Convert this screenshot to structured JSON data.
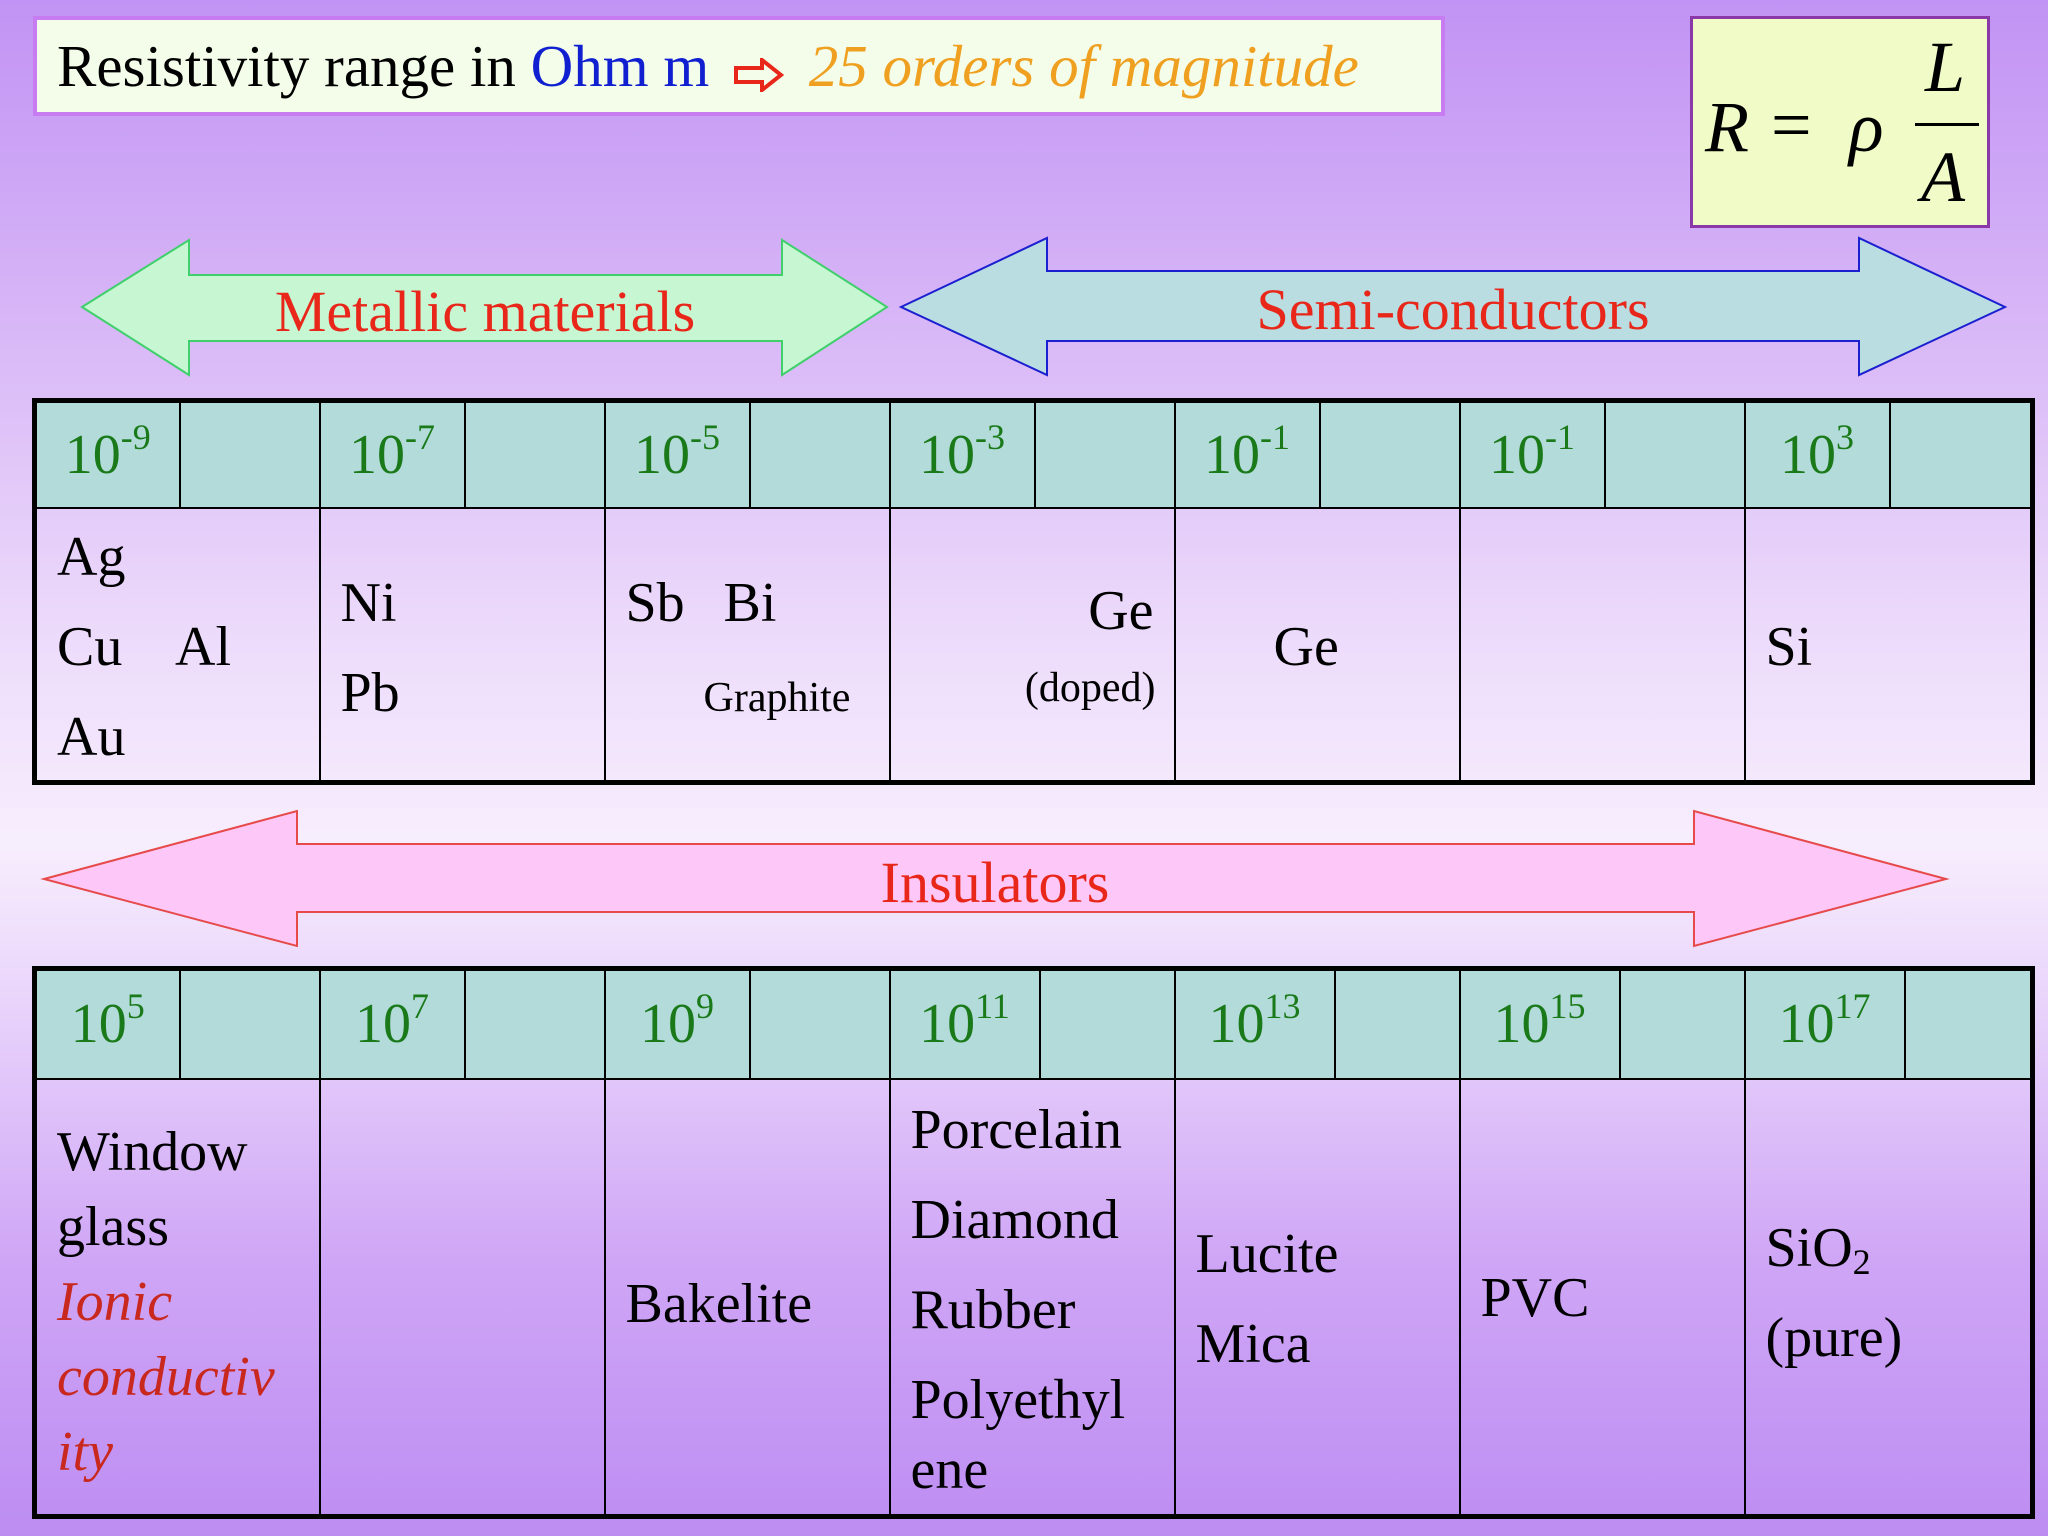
{
  "title": {
    "prefix": "Resistivity range in",
    "unit": "Ohm m",
    "arrow_icon": "hollow-right-arrow-icon",
    "orders": "25 orders of magnitude"
  },
  "formula": {
    "lhs": "R",
    "eq": "=",
    "rho": "ρ",
    "numerator": "L",
    "denominator": "A"
  },
  "bands": {
    "metallic": "Metallic materials",
    "semiconductors": "Semi-conductors",
    "insulators": "Insulators"
  },
  "colors": {
    "metallic_fill": "#c6f7d2",
    "metallic_stroke": "#3fcf6b",
    "semi_fill": "#b9dde1",
    "semi_stroke": "#1a1fd0",
    "insulators_fill": "#fdc7f7",
    "insulators_stroke": "#e64a4a",
    "label_red": "#e8271a",
    "exponent_green": "#1a7a1a",
    "header_teal": "#b3dbda"
  },
  "table1": {
    "headers": [
      {
        "base": "10",
        "exp": "-9"
      },
      {
        "base": "10",
        "exp": "-7"
      },
      {
        "base": "10",
        "exp": "-5"
      },
      {
        "base": "10",
        "exp": "-3"
      },
      {
        "base": "10",
        "exp": "-1"
      },
      {
        "base": "10",
        "exp": "-1"
      },
      {
        "base": "10",
        "exp": "3"
      }
    ],
    "cells": {
      "c1": [
        "Ag",
        "Cu",
        "Al",
        "Au"
      ],
      "c2": [
        "Ni",
        "Pb"
      ],
      "c3": [
        "Sb",
        "Bi",
        "Graphite"
      ],
      "c4": [
        "Ge",
        "(doped)"
      ],
      "c5": [
        "Ge"
      ],
      "c6": [],
      "c7": [
        "Si"
      ]
    }
  },
  "table2": {
    "headers": [
      {
        "base": "10",
        "exp": "5"
      },
      {
        "base": "10",
        "exp": "7"
      },
      {
        "base": "10",
        "exp": "9"
      },
      {
        "base": "10",
        "exp": "11"
      },
      {
        "base": "10",
        "exp": "13"
      },
      {
        "base": "10",
        "exp": "15"
      },
      {
        "base": "10",
        "exp": "17"
      }
    ],
    "cells": {
      "c1": [
        "Window",
        "glass",
        "Ionic",
        "conductiv",
        "ity"
      ],
      "c2": [],
      "c3": [
        "Bakelite"
      ],
      "c4": [
        "Porcelain",
        "Diamond",
        "Rubber",
        "Polyethyl",
        "ene"
      ],
      "c5": [
        "Lucite",
        "Mica"
      ],
      "c6": [
        "PVC"
      ],
      "c7": [
        "SiO",
        "2",
        "(pure)"
      ]
    }
  }
}
